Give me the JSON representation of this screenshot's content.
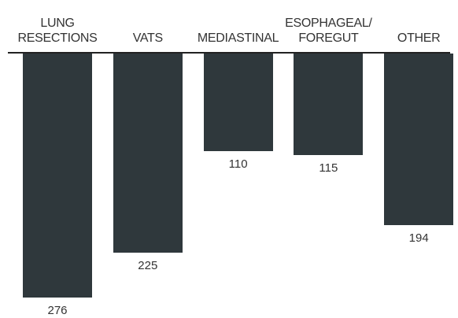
{
  "chart_data": {
    "type": "bar",
    "categories": [
      "LUNG RESECTIONS",
      "VATS",
      "MEDIASTINAL",
      "ESOPHAGEAL/ FOREGUT",
      "OTHER"
    ],
    "values": [
      276,
      225,
      110,
      115,
      194
    ],
    "color": "#2f383c"
  }
}
